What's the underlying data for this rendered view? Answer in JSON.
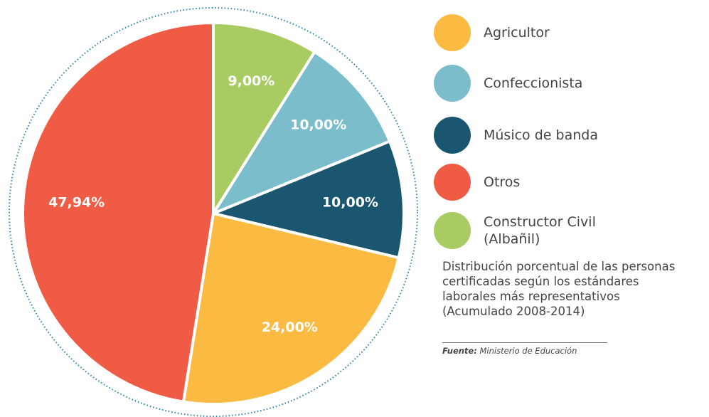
{
  "chart_data": {
    "type": "pie",
    "categories": [
      "Agricultor",
      "Confeccionista",
      "Músico de banda",
      "Otros",
      "Constructor Civil (Albañil)"
    ],
    "values": [
      24,
      10,
      10,
      47.94,
      9
    ],
    "value_labels": [
      "24,00%",
      "10,00%",
      "10,00%",
      "47,94%",
      "9,00%"
    ],
    "colors": [
      "#fbbb43",
      "#7bbdca",
      "#1a566f",
      "#ef5b45",
      "#a8cb62"
    ],
    "subtitle": [
      "Distribución porcentual de las personas",
      "certificadas según los estándares",
      "laborales más representativos",
      "(Acumulado 2008-2014)"
    ],
    "source": {
      "label": "Fuente:",
      "text": "Ministerio de Educación"
    }
  }
}
